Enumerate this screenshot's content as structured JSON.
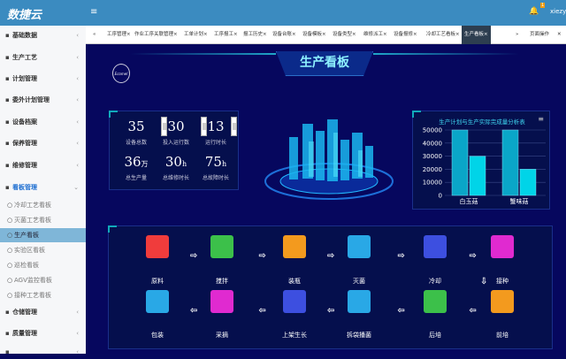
{
  "header": {
    "logo": "数捷云",
    "menu_icon": "hamburger-icon",
    "notification_count": "1",
    "user": "xiezy",
    "accent": "#3b8bc0"
  },
  "sidebar": {
    "items": [
      {
        "label": "基础数据",
        "icon": "sliders-icon"
      },
      {
        "label": "生产工艺",
        "icon": "chart-icon"
      },
      {
        "label": "计划管理",
        "icon": "document-icon"
      },
      {
        "label": "委外计划管理",
        "icon": "eye-icon"
      },
      {
        "label": "设备档案",
        "icon": "box-icon"
      },
      {
        "label": "保养管理",
        "icon": "calendar-icon"
      },
      {
        "label": "维修管理",
        "icon": "print-icon"
      },
      {
        "label": "看板管理",
        "icon": "copy-icon",
        "expanded": true
      },
      {
        "label": "仓储管理",
        "icon": "grid-icon"
      },
      {
        "label": "质量管理",
        "icon": "signature-icon"
      },
      {
        "label": "",
        "icon": "gear-icon"
      }
    ],
    "subitems": [
      {
        "label": "冷却工艺看板",
        "icon": "snowflake-icon"
      },
      {
        "label": "灭菌工艺看板",
        "icon": "circle-icon"
      },
      {
        "label": "生产看板",
        "icon": "book-icon",
        "active": true
      },
      {
        "label": "实验区看板",
        "icon": "refresh-icon"
      },
      {
        "label": "巡检看板",
        "icon": "pin-icon"
      },
      {
        "label": "AGV监控看板",
        "icon": "clock-icon"
      },
      {
        "label": "接种工艺看板",
        "icon": "bottle-icon"
      }
    ]
  },
  "tabs": {
    "items": [
      "工序管理×",
      "作业工序关联管理×",
      "工单计划×",
      "工序报工×",
      "报工历史×",
      "设备台账×",
      "设备模板×",
      "设备类型×",
      "维修派工×",
      "设备报修×",
      "冷却工艺看板×",
      "生产看板×"
    ],
    "active": "生产看板×",
    "page_ops": "页面操作",
    "prev": "«",
    "next": "»"
  },
  "dashboard": {
    "title": "生产看板",
    "stats": [
      {
        "value": "35",
        "unit": "",
        "label": "设备总数"
      },
      {
        "value": "30",
        "unit": "",
        "label": "投入运行数"
      },
      {
        "value": "13",
        "unit": "",
        "label": "运行时长"
      },
      {
        "value": "36",
        "unit": "万",
        "label": "总生产量"
      },
      {
        "value": "30",
        "unit": "h",
        "label": "总维修时长"
      },
      {
        "value": "75",
        "unit": "h",
        "label": "总故障时长"
      }
    ],
    "flow": [
      {
        "label": "原料",
        "color": "#f03c3c"
      },
      {
        "label": "搅拌",
        "color": "#3cc04a"
      },
      {
        "label": "装瓶",
        "color": "#f39a1e"
      },
      {
        "label": "灭菌",
        "color": "#29a8e6"
      },
      {
        "label": "冷却",
        "color": "#3d4fe0"
      },
      {
        "label": "接种",
        "color": "#e02ad0"
      },
      {
        "label": "前培",
        "color": "#f39a1e"
      },
      {
        "label": "后培",
        "color": "#3cc04a"
      },
      {
        "label": "拆袋播菌",
        "color": "#29a8e6"
      },
      {
        "label": "上架生长",
        "color": "#3d4fe0"
      },
      {
        "label": "采摘",
        "color": "#e02ad0"
      },
      {
        "label": "包装",
        "color": "#29a8e6"
      }
    ]
  },
  "chart_data": {
    "type": "bar",
    "title": "生产计划与生产实际完成量分析表",
    "categories": [
      "白玉菇",
      "蟹味菇"
    ],
    "series": [
      {
        "values": [
          50000,
          50000
        ],
        "color": "#0aa6c8"
      },
      {
        "values": [
          30000,
          20000
        ],
        "color": "#00d4e8"
      }
    ],
    "ylim": [
      0,
      50000
    ],
    "yticks": [
      0,
      10000,
      20000,
      30000,
      40000,
      50000
    ],
    "grid": true,
    "menu_icon": "hamburger-icon"
  }
}
